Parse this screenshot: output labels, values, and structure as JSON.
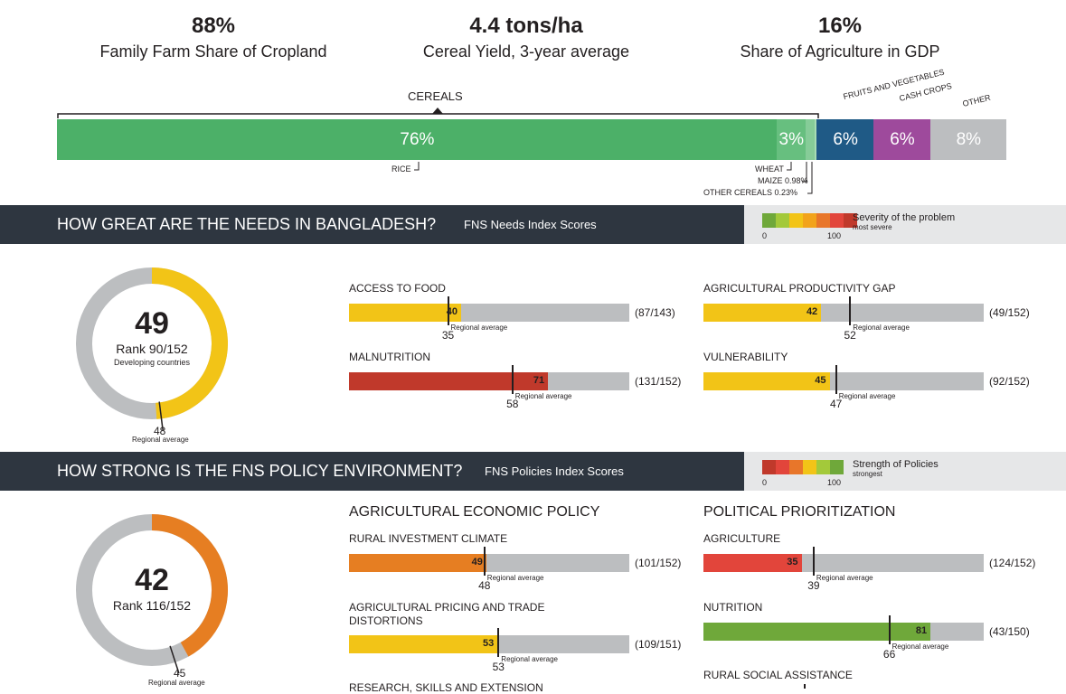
{
  "kpis": [
    {
      "value": "88%",
      "label": "Family Farm Share of Cropland"
    },
    {
      "value": "4.4 tons/ha",
      "label": "Cereal Yield, 3-year average"
    },
    {
      "value": "16%",
      "label": "Share of Agriculture in GDP"
    }
  ],
  "crop_bar": {
    "cereals_label": "CEREALS",
    "segments": [
      {
        "name": "RICE",
        "value": 76,
        "label": "76%",
        "color": "#4cb068"
      },
      {
        "name": "WHEAT",
        "value": 3,
        "label": "3%",
        "color": "#67bf7f"
      },
      {
        "name": "MAIZE",
        "value": 0.98,
        "label": "",
        "color": "#86cc98"
      },
      {
        "name": "OTHER CEREALS",
        "value": 0.23,
        "label": "",
        "color": "#a8dcb4"
      },
      {
        "name": "FRUITS AND VEGETABLES",
        "value": 6,
        "label": "6%",
        "color": "#1f5a86"
      },
      {
        "name": "CASH CROPS",
        "value": 6,
        "label": "6%",
        "color": "#9e4a9c"
      },
      {
        "name": "OTHER",
        "value": 8,
        "label": "8%",
        "color": "#bcbec0"
      }
    ],
    "sub_labels": {
      "rice": "RICE",
      "wheat": "WHEAT",
      "maize": "MAIZE 0.98%",
      "other_cereals": "OTHER CEREALS 0.23%"
    }
  },
  "needs": {
    "heading": "HOW GREAT ARE THE NEEDS IN BANGLADESH?",
    "sub": "FNS Needs Index Scores",
    "legend_title": "Severity of the problem",
    "legend_sub": "most severe",
    "legend_min": "0",
    "legend_max": "100",
    "legend_colors": [
      "#6fa83a",
      "#a3c93a",
      "#f2c417",
      "#f2a31b",
      "#e8762a",
      "#e2453b",
      "#c0392b"
    ],
    "score": "49",
    "rank": "Rank 90/152",
    "group": "Developing countries",
    "regional": "48",
    "regional_label": "Regional average",
    "donut_value": 49,
    "donut_regional": 48,
    "donut_color": "#f2c417",
    "indicators": [
      {
        "name": "ACCESS TO FOOD",
        "score": 40,
        "regional": 35,
        "rank": "(87/143)",
        "color": "#f2c417"
      },
      {
        "name": "AGRICULTURAL PRODUCTIVITY GAP",
        "score": 42,
        "regional": 52,
        "rank": "(49/152)",
        "color": "#f2c417"
      },
      {
        "name": "MALNUTRITION",
        "score": 71,
        "regional": 58,
        "rank": "(131/152)",
        "color": "#c0392b"
      },
      {
        "name": "VULNERABILITY",
        "score": 45,
        "regional": 47,
        "rank": "(92/152)",
        "color": "#f2c417"
      }
    ]
  },
  "policy": {
    "heading": "HOW STRONG IS THE FNS POLICY ENVIRONMENT?",
    "sub": "FNS Policies Index Scores",
    "legend_title": "Strength of Policies",
    "legend_sub": "strongest",
    "legend_min": "0",
    "legend_max": "100",
    "legend_colors": [
      "#c0392b",
      "#e2453b",
      "#e8762a",
      "#f2c417",
      "#a3c93a",
      "#6fa83a"
    ],
    "score": "42",
    "rank": "Rank 116/152",
    "regional": "45",
    "regional_label": "Regional average",
    "donut_value": 42,
    "donut_regional": 45,
    "donut_color": "#e67e22",
    "section_left": "AGRICULTURAL ECONOMIC POLICY",
    "section_right": "POLITICAL PRIORITIZATION",
    "indicators": [
      {
        "name": "RURAL INVESTMENT CLIMATE",
        "score": 49,
        "regional": 48,
        "rank": "(101/152)",
        "color": "#e67e22"
      },
      {
        "name": "AGRICULTURE",
        "score": 35,
        "regional": 39,
        "rank": "(124/152)",
        "color": "#e2453b"
      },
      {
        "name": "AGRICULTURAL PRICING AND TRADE",
        "name2": "DISTORTIONS",
        "score": 53,
        "regional": 53,
        "rank": "(109/151)",
        "color": "#f2c417"
      },
      {
        "name": "NUTRITION",
        "score": 81,
        "regional": 66,
        "rank": "(43/150)",
        "color": "#6fa83a"
      }
    ],
    "cut_left": "RESEARCH, SKILLS AND EXTENSION",
    "cut_right": "RURAL SOCIAL ASSISTANCE"
  },
  "chart_data": [
    {
      "type": "bar",
      "title": "",
      "categories": [
        "RICE",
        "WHEAT",
        "MAIZE",
        "OTHER CEREALS",
        "FRUITS AND VEGETABLES",
        "CASH CROPS",
        "OTHER"
      ],
      "values": [
        76,
        3,
        0.98,
        0.23,
        6,
        6,
        8
      ]
    },
    {
      "type": "bar",
      "title": "FNS Needs Index Scores",
      "categories": [
        "ACCESS TO FOOD",
        "AGRICULTURAL PRODUCTIVITY GAP",
        "MALNUTRITION",
        "VULNERABILITY"
      ],
      "series": [
        {
          "name": "Score",
          "values": [
            40,
            42,
            71,
            45
          ]
        },
        {
          "name": "Regional average",
          "values": [
            35,
            52,
            58,
            47
          ]
        }
      ],
      "ylim": [
        0,
        100
      ]
    },
    {
      "type": "bar",
      "title": "FNS Policies Index Scores",
      "categories": [
        "RURAL INVESTMENT CLIMATE",
        "AGRICULTURE",
        "AGRICULTURAL PRICING AND TRADE DISTORTIONS",
        "NUTRITION"
      ],
      "series": [
        {
          "name": "Score",
          "values": [
            49,
            35,
            53,
            81
          ]
        },
        {
          "name": "Regional average",
          "values": [
            48,
            39,
            53,
            66
          ]
        }
      ],
      "ylim": [
        0,
        100
      ]
    }
  ]
}
